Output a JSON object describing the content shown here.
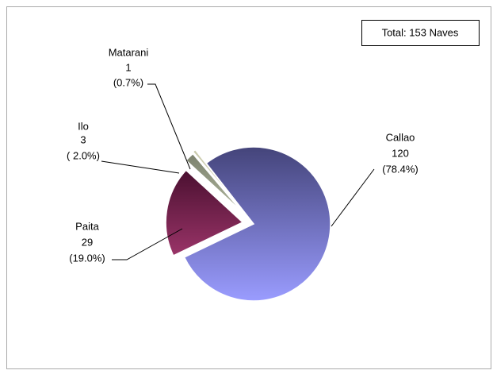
{
  "chart_data": {
    "type": "pie",
    "annotation": "Total: 153 Naves",
    "categories": [
      "Callao",
      "Paita",
      "Ilo",
      "Matarani"
    ],
    "values": [
      120,
      29,
      3,
      1
    ],
    "percents": [
      78.4,
      19.0,
      2.0,
      0.7
    ],
    "percent_labels": [
      "(78.4%)",
      "(19.0%)",
      "( 2.0%)",
      "(0.7%)"
    ],
    "colors": [
      "#7070c8",
      "#7a2550",
      "#9aa08a",
      "#d6d6bc"
    ]
  }
}
